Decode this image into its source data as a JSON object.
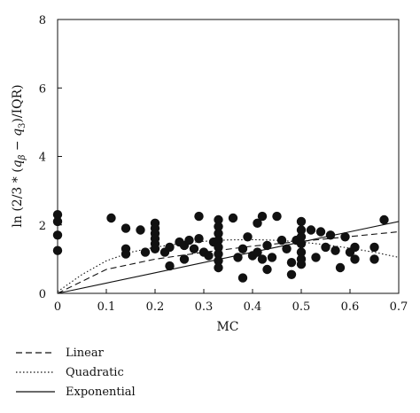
{
  "chart_data": {
    "type": "scatter",
    "title": "",
    "xlabel": "MC",
    "ylabel": "ln (2/3 * (q_β − q_3)/IQR)",
    "ylabel_parts": {
      "pre": "ln (2/3 * (",
      "q1": "q",
      "q1_sub": "β",
      "mid": " − ",
      "q2": "q",
      "q2_sub": "3",
      "post": ")/IQR)"
    },
    "xlim": [
      0,
      0.7
    ],
    "ylim": [
      0,
      8
    ],
    "x_ticks": [
      0,
      0.1,
      0.2,
      0.3,
      0.4,
      0.5,
      0.6,
      0.7
    ],
    "x_tick_labels": [
      "0",
      "0.1",
      "0.2",
      "0.3",
      "0.4",
      "0.5",
      "0.6",
      "0.7"
    ],
    "y_ticks": [
      0,
      2,
      4,
      6,
      8
    ],
    "y_tick_labels": [
      "0",
      "2",
      "4",
      "6",
      "8"
    ],
    "grid": false,
    "legend_position": "below",
    "marker_color": "#111111",
    "points": [
      {
        "x": 0.0,
        "y": 2.3
      },
      {
        "x": 0.0,
        "y": 2.1
      },
      {
        "x": 0.0,
        "y": 1.7
      },
      {
        "x": 0.0,
        "y": 1.25
      },
      {
        "x": 0.11,
        "y": 2.2
      },
      {
        "x": 0.14,
        "y": 1.9
      },
      {
        "x": 0.14,
        "y": 1.3
      },
      {
        "x": 0.14,
        "y": 1.15
      },
      {
        "x": 0.17,
        "y": 1.85
      },
      {
        "x": 0.18,
        "y": 1.2
      },
      {
        "x": 0.2,
        "y": 2.05
      },
      {
        "x": 0.2,
        "y": 1.9
      },
      {
        "x": 0.2,
        "y": 1.75
      },
      {
        "x": 0.2,
        "y": 1.6
      },
      {
        "x": 0.2,
        "y": 1.45
      },
      {
        "x": 0.2,
        "y": 1.3
      },
      {
        "x": 0.22,
        "y": 1.2
      },
      {
        "x": 0.23,
        "y": 0.8
      },
      {
        "x": 0.23,
        "y": 1.35
      },
      {
        "x": 0.25,
        "y": 1.5
      },
      {
        "x": 0.26,
        "y": 1.4
      },
      {
        "x": 0.26,
        "y": 1.0
      },
      {
        "x": 0.27,
        "y": 1.55
      },
      {
        "x": 0.28,
        "y": 1.3
      },
      {
        "x": 0.29,
        "y": 2.25
      },
      {
        "x": 0.29,
        "y": 1.6
      },
      {
        "x": 0.3,
        "y": 1.2
      },
      {
        "x": 0.31,
        "y": 1.1
      },
      {
        "x": 0.32,
        "y": 1.5
      },
      {
        "x": 0.33,
        "y": 2.15
      },
      {
        "x": 0.33,
        "y": 1.95
      },
      {
        "x": 0.33,
        "y": 1.75
      },
      {
        "x": 0.33,
        "y": 1.55
      },
      {
        "x": 0.33,
        "y": 1.35
      },
      {
        "x": 0.33,
        "y": 1.15
      },
      {
        "x": 0.33,
        "y": 0.95
      },
      {
        "x": 0.33,
        "y": 0.75
      },
      {
        "x": 0.36,
        "y": 2.2
      },
      {
        "x": 0.37,
        "y": 1.05
      },
      {
        "x": 0.38,
        "y": 1.3
      },
      {
        "x": 0.38,
        "y": 0.45
      },
      {
        "x": 0.39,
        "y": 1.65
      },
      {
        "x": 0.4,
        "y": 1.1
      },
      {
        "x": 0.41,
        "y": 1.2
      },
      {
        "x": 0.41,
        "y": 2.05
      },
      {
        "x": 0.42,
        "y": 1.0
      },
      {
        "x": 0.42,
        "y": 2.25
      },
      {
        "x": 0.43,
        "y": 1.4
      },
      {
        "x": 0.43,
        "y": 0.7
      },
      {
        "x": 0.44,
        "y": 1.05
      },
      {
        "x": 0.45,
        "y": 2.25
      },
      {
        "x": 0.46,
        "y": 1.55
      },
      {
        "x": 0.47,
        "y": 1.3
      },
      {
        "x": 0.48,
        "y": 0.55
      },
      {
        "x": 0.48,
        "y": 0.9
      },
      {
        "x": 0.49,
        "y": 1.55
      },
      {
        "x": 0.5,
        "y": 2.1
      },
      {
        "x": 0.5,
        "y": 1.85
      },
      {
        "x": 0.5,
        "y": 1.65
      },
      {
        "x": 0.5,
        "y": 1.45
      },
      {
        "x": 0.5,
        "y": 1.2
      },
      {
        "x": 0.5,
        "y": 1.0
      },
      {
        "x": 0.5,
        "y": 0.85
      },
      {
        "x": 0.52,
        "y": 1.85
      },
      {
        "x": 0.53,
        "y": 1.05
      },
      {
        "x": 0.54,
        "y": 1.8
      },
      {
        "x": 0.55,
        "y": 1.35
      },
      {
        "x": 0.56,
        "y": 1.7
      },
      {
        "x": 0.57,
        "y": 1.25
      },
      {
        "x": 0.58,
        "y": 0.75
      },
      {
        "x": 0.59,
        "y": 1.65
      },
      {
        "x": 0.6,
        "y": 1.2
      },
      {
        "x": 0.61,
        "y": 1.35
      },
      {
        "x": 0.61,
        "y": 1.0
      },
      {
        "x": 0.65,
        "y": 1.35
      },
      {
        "x": 0.65,
        "y": 1.0
      },
      {
        "x": 0.67,
        "y": 2.15
      }
    ],
    "curves": [
      {
        "name": "Linear",
        "dash": "dashed",
        "x": [
          0,
          0.1,
          0.2,
          0.3,
          0.4,
          0.5,
          0.6,
          0.7
        ],
        "y": [
          0.0,
          0.7,
          1.0,
          1.2,
          1.38,
          1.52,
          1.66,
          1.8
        ]
      },
      {
        "name": "Quadratic",
        "dash": "dotted",
        "x": [
          0,
          0.05,
          0.1,
          0.15,
          0.2,
          0.25,
          0.3,
          0.35,
          0.4,
          0.45,
          0.5,
          0.55,
          0.6,
          0.65,
          0.7
        ],
        "y": [
          0.05,
          0.55,
          0.95,
          1.2,
          1.35,
          1.45,
          1.52,
          1.56,
          1.57,
          1.55,
          1.5,
          1.42,
          1.32,
          1.2,
          1.05
        ]
      },
      {
        "name": "Exponential",
        "dash": "solid",
        "x": [
          0,
          0.1,
          0.2,
          0.3,
          0.4,
          0.5,
          0.6,
          0.7
        ],
        "y": [
          0.0,
          0.3,
          0.6,
          0.9,
          1.2,
          1.5,
          1.8,
          2.1
        ]
      }
    ]
  },
  "legend": {
    "items": [
      {
        "label": "Linear",
        "dash": "dashed"
      },
      {
        "label": "Quadratic",
        "dash": "dotted"
      },
      {
        "label": "Exponential",
        "dash": "solid"
      }
    ]
  }
}
